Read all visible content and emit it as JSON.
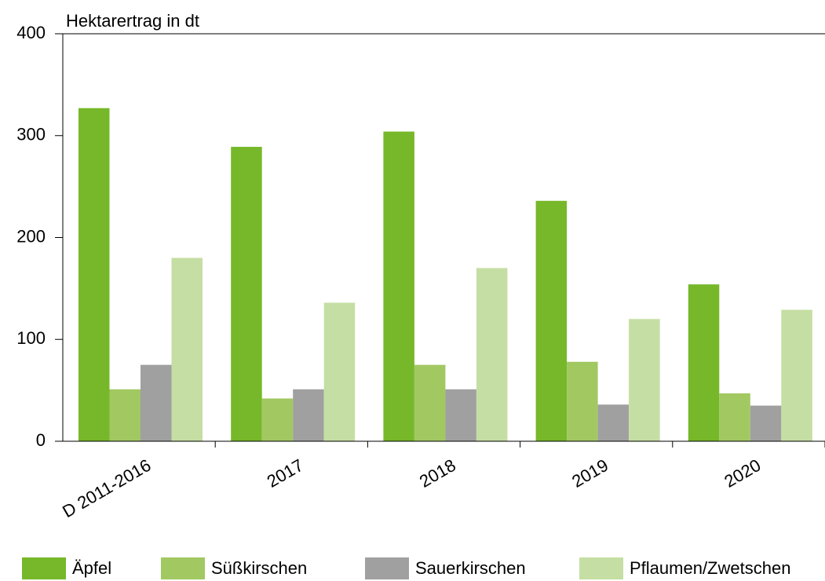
{
  "chart_data": {
    "type": "bar",
    "y_axis_label": "Hektarertrag in dt",
    "categories": [
      "D 2011-2016",
      "2017",
      "2018",
      "2019",
      "2020"
    ],
    "series": [
      {
        "name": "Äpfel",
        "color": "#76b82a",
        "values": [
          327,
          289,
          304,
          236,
          154
        ]
      },
      {
        "name": "Süßkirschen",
        "color": "#a2c862",
        "values": [
          51,
          42,
          75,
          78,
          47
        ]
      },
      {
        "name": "Sauerkirschen",
        "color": "#a0a0a0",
        "values": [
          75,
          51,
          51,
          36,
          35
        ]
      },
      {
        "name": "Pflaumen/Zwetschen",
        "color": "#c5dea3",
        "values": [
          180,
          136,
          170,
          120,
          129
        ]
      }
    ],
    "ylim": [
      0,
      400
    ],
    "yticks": [
      0,
      100,
      200,
      300,
      400
    ],
    "grid": false,
    "legend": "bottom"
  }
}
